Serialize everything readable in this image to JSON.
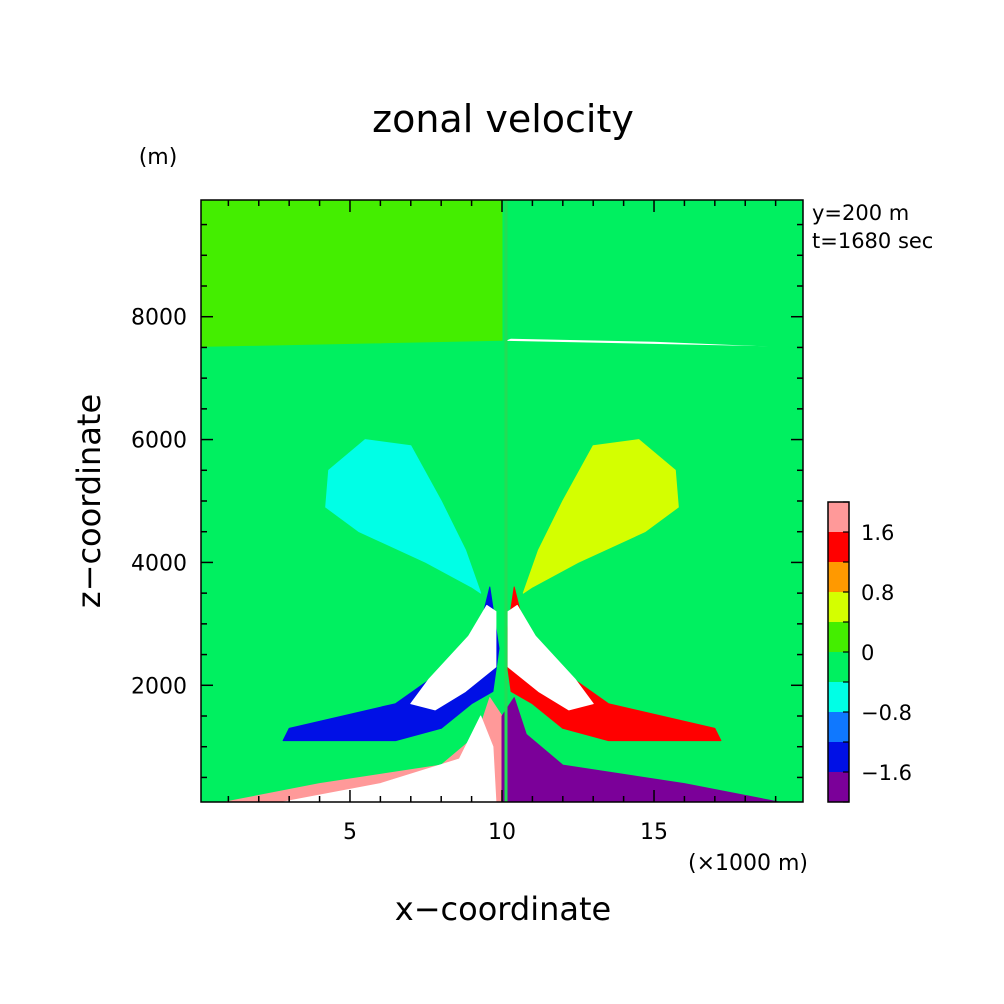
{
  "chart_data": {
    "type": "heatmap",
    "title": "zonal velocity",
    "xlabel": "x−coordinate",
    "ylabel": "z−coordinate",
    "x_unit": "(×1000 m)",
    "y_unit": "(m)",
    "annotations": [
      "y=200 m",
      "t=1680 sec"
    ],
    "xlim": [
      0.1,
      19.9
    ],
    "ylim": [
      100,
      9900
    ],
    "x_ticks": [
      {
        "value": 5,
        "label": "5"
      },
      {
        "value": 10,
        "label": "10"
      },
      {
        "value": 15,
        "label": "15"
      }
    ],
    "y_ticks": [
      {
        "value": 2000,
        "label": "2000"
      },
      {
        "value": 4000,
        "label": "4000"
      },
      {
        "value": 6000,
        "label": "6000"
      },
      {
        "value": 8000,
        "label": "8000"
      }
    ],
    "colorbar": {
      "levels": [
        -2.0,
        -1.6,
        -1.2,
        -0.8,
        -0.4,
        0,
        0.4,
        0.8,
        1.2,
        1.6,
        2.0
      ],
      "colors": [
        "#7b0099",
        "#0010e6",
        "#0f78ff",
        "#00ffe6",
        "#00f060",
        "#44ee00",
        "#d4ff00",
        "#ff9900",
        "#ff0000",
        "#ff9999"
      ],
      "tick_labels": [
        {
          "value": -1.6,
          "label": "−1.6"
        },
        {
          "value": -0.8,
          "label": "−0.8"
        },
        {
          "value": 0,
          "label": "0"
        },
        {
          "value": 0.8,
          "label": "0.8"
        },
        {
          "value": 1.6,
          "label": "1.6"
        }
      ]
    },
    "field_regions": [
      {
        "name": "upper-right-weak-negative",
        "value": -0.2,
        "polygon": [
          [
            10.0,
            9900
          ],
          [
            19.9,
            9900
          ],
          [
            19.9,
            7500
          ],
          [
            15,
            7600
          ],
          [
            10.3,
            7650
          ],
          [
            10.0,
            7600
          ]
        ]
      },
      {
        "name": "upper-left-weak-positive",
        "value": 0.2,
        "polygon": [
          [
            0.1,
            9900
          ],
          [
            10.0,
            9900
          ],
          [
            10.0,
            7600
          ],
          [
            5,
            7550
          ],
          [
            0.1,
            7500
          ]
        ]
      },
      {
        "name": "left-mid-weak-negative",
        "value": -0.2,
        "polygon": [
          [
            0.1,
            7500
          ],
          [
            10.0,
            7600
          ],
          [
            10.0,
            100
          ],
          [
            0.1,
            100
          ]
        ]
      },
      {
        "name": "right-mid-weak-negative",
        "value": -0.2,
        "polygon": [
          [
            10.0,
            7600
          ],
          [
            19.9,
            7500
          ],
          [
            19.9,
            100
          ],
          [
            10.0,
            100
          ]
        ]
      },
      {
        "name": "left-lobe-moderate-negative",
        "value": -0.6,
        "polygon": [
          [
            9.3,
            3500
          ],
          [
            8.8,
            4200
          ],
          [
            8.0,
            5000
          ],
          [
            7.0,
            5900
          ],
          [
            5.5,
            6000
          ],
          [
            4.3,
            5500
          ],
          [
            4.2,
            4900
          ],
          [
            5.3,
            4500
          ],
          [
            7.5,
            4000
          ],
          [
            9.0,
            3600
          ]
        ]
      },
      {
        "name": "right-lobe-moderate-positive",
        "value": 0.6,
        "polygon": [
          [
            10.7,
            3500
          ],
          [
            11.2,
            4200
          ],
          [
            12.0,
            5000
          ],
          [
            13.0,
            5900
          ],
          [
            14.5,
            6000
          ],
          [
            15.7,
            5500
          ],
          [
            15.8,
            4900
          ],
          [
            14.7,
            4500
          ],
          [
            12.5,
            4000
          ],
          [
            11.0,
            3600
          ]
        ]
      },
      {
        "name": "left-arm-strong-negative",
        "value": -1.4,
        "polygon": [
          [
            9.6,
            3600
          ],
          [
            9.3,
            3000
          ],
          [
            8.5,
            2400
          ],
          [
            6.5,
            1700
          ],
          [
            3.0,
            1300
          ],
          [
            2.8,
            1100
          ],
          [
            6.5,
            1100
          ],
          [
            8.0,
            1300
          ],
          [
            9.0,
            1700
          ],
          [
            9.7,
            1900
          ],
          [
            9.9,
            2600
          ]
        ]
      },
      {
        "name": "right-arm-strong-positive",
        "value": 1.4,
        "polygon": [
          [
            10.4,
            3600
          ],
          [
            10.7,
            3000
          ],
          [
            11.5,
            2400
          ],
          [
            13.5,
            1700
          ],
          [
            17.0,
            1300
          ],
          [
            17.2,
            1100
          ],
          [
            13.5,
            1100
          ],
          [
            12.0,
            1300
          ],
          [
            11.0,
            1700
          ],
          [
            10.3,
            1900
          ],
          [
            10.1,
            2600
          ]
        ]
      },
      {
        "name": "bottom-left-strong-positive",
        "value": 1.8,
        "polygon": [
          [
            0.9,
            100
          ],
          [
            4.0,
            400
          ],
          [
            8.0,
            700
          ],
          [
            9.2,
            1200
          ],
          [
            9.6,
            1800
          ],
          [
            10.0,
            1500
          ],
          [
            10.0,
            100
          ]
        ]
      },
      {
        "name": "bottom-right-strong-negative",
        "value": -1.8,
        "polygon": [
          [
            10.0,
            100
          ],
          [
            10.0,
            1500
          ],
          [
            10.4,
            1800
          ],
          [
            10.8,
            1200
          ],
          [
            12.0,
            700
          ],
          [
            16.0,
            400
          ],
          [
            19.1,
            100
          ]
        ]
      },
      {
        "name": "left-core-extreme",
        "value": 2.2,
        "polygon": [
          [
            9.5,
            3300
          ],
          [
            8.9,
            2800
          ],
          [
            7.6,
            2100
          ],
          [
            7.0,
            1700
          ],
          [
            7.8,
            1600
          ],
          [
            8.8,
            1900
          ],
          [
            9.8,
            2300
          ],
          [
            9.8,
            3200
          ]
        ]
      },
      {
        "name": "right-core-extreme",
        "value": -2.2,
        "polygon": [
          [
            10.5,
            3300
          ],
          [
            11.1,
            2800
          ],
          [
            12.4,
            2100
          ],
          [
            13.0,
            1700
          ],
          [
            12.2,
            1600
          ],
          [
            11.2,
            1900
          ],
          [
            10.2,
            2300
          ],
          [
            10.2,
            3200
          ]
        ]
      },
      {
        "name": "bottom-core-extreme",
        "value": 2.2,
        "polygon": [
          [
            2.8,
            100
          ],
          [
            6.0,
            400
          ],
          [
            8.6,
            800
          ],
          [
            9.3,
            1500
          ],
          [
            9.7,
            1000
          ],
          [
            9.8,
            100
          ]
        ]
      }
    ]
  }
}
